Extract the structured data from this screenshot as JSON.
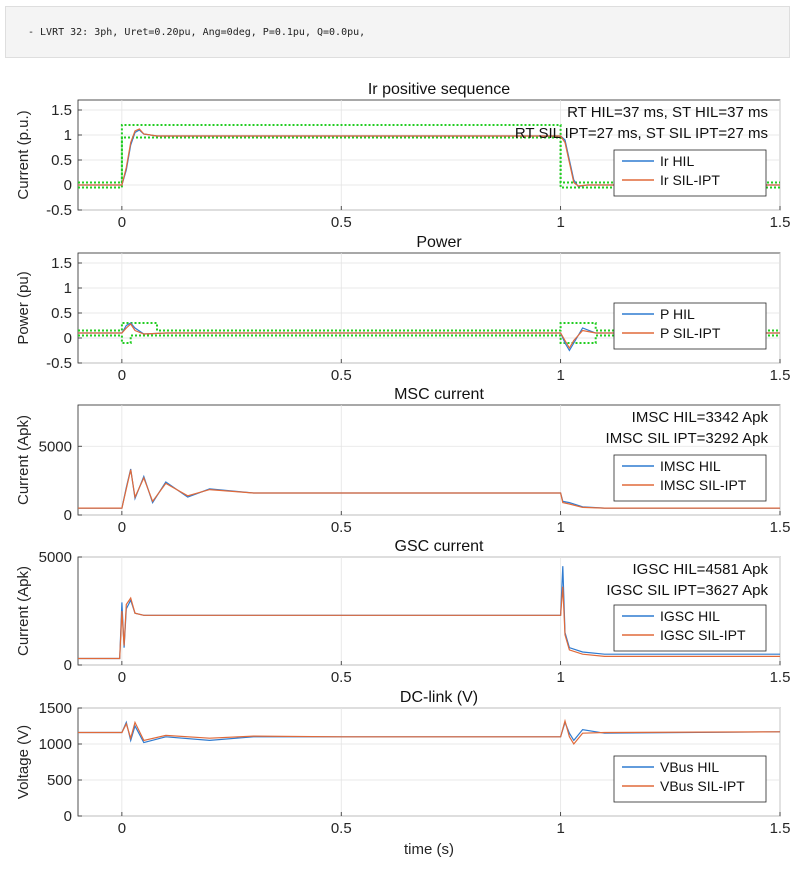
{
  "header": {
    "command_text": "- LVRT 32: 3ph, Uret=0.20pu, Ang=0deg, P=0.1pu, Q=0.0pu,"
  },
  "colors": {
    "hil": "#2f7bd0",
    "sil": "#e06a3a",
    "ref": "#22cc22",
    "grey": "#7a7a7a"
  },
  "chart_data": [
    {
      "type": "line",
      "title": "Ir positive sequence",
      "ylabel": "Current (p.u.)",
      "xlabel": "",
      "xlim": [
        -0.1,
        1.5
      ],
      "ylim": [
        -0.5,
        1.7
      ],
      "xticks": [
        0,
        0.5,
        1,
        1.5
      ],
      "xtick_labels": [
        "0",
        "0.5",
        "1",
        "1.5"
      ],
      "yticks": [
        -0.5,
        0,
        0.5,
        1,
        1.5
      ],
      "ytick_labels": [
        "-0.5",
        "0",
        "0.5",
        "1",
        "1.5"
      ],
      "grid": true,
      "legend_placement": "right",
      "annotations": [
        "RT HIL=37 ms, ST HIL=37 ms",
        "RT SIL IPT=27 ms, ST SIL IPT=27 ms"
      ],
      "series": [
        {
          "name": "Ir HIL",
          "x": [
            -0.1,
            0,
            0.01,
            0.02,
            0.03,
            0.04,
            0.05,
            0.08,
            0.2,
            1.0,
            1.01,
            1.02,
            1.03,
            1.04,
            1.06,
            1.1,
            1.5
          ],
          "y": [
            0,
            0,
            0.3,
            0.8,
            1.05,
            1.1,
            1.02,
            0.98,
            0.98,
            0.98,
            0.9,
            0.5,
            0.1,
            -0.03,
            0.0,
            0.0,
            0.0
          ]
        },
        {
          "name": "Ir SIL-IPT",
          "x": [
            -0.1,
            0,
            0.01,
            0.02,
            0.03,
            0.04,
            0.05,
            0.08,
            0.2,
            1.0,
            1.01,
            1.02,
            1.03,
            1.04,
            1.06,
            1.1,
            1.5
          ],
          "y": [
            0,
            0,
            0.35,
            0.85,
            1.08,
            1.12,
            1.02,
            0.98,
            0.98,
            0.98,
            0.85,
            0.45,
            0.05,
            -0.02,
            0.0,
            0.0,
            0.0
          ]
        }
      ],
      "reference_bands": [
        {
          "x": [
            -0.1,
            0,
            0,
            1.0,
            1.0,
            1.5
          ],
          "y": [
            0.05,
            0.05,
            1.2,
            1.2,
            0.05,
            0.05
          ]
        },
        {
          "x": [
            -0.1,
            0,
            0,
            1.0,
            1.0,
            1.5
          ],
          "y": [
            -0.05,
            -0.05,
            0.95,
            0.95,
            -0.05,
            -0.05
          ]
        }
      ]
    },
    {
      "type": "line",
      "title": "Power",
      "ylabel": "Power (pu)",
      "xlabel": "",
      "xlim": [
        -0.1,
        1.5
      ],
      "ylim": [
        -0.5,
        1.7
      ],
      "xticks": [
        0,
        0.5,
        1,
        1.5
      ],
      "xtick_labels": [
        "0",
        "0.5",
        "1",
        "1.5"
      ],
      "yticks": [
        -0.5,
        0,
        0.5,
        1,
        1.5
      ],
      "ytick_labels": [
        "-0.5",
        "0",
        "0.5",
        "1",
        "1.5"
      ],
      "grid": true,
      "legend_placement": "right",
      "annotations": [],
      "series": [
        {
          "name": "P HIL",
          "x": [
            -0.1,
            0,
            0.01,
            0.02,
            0.03,
            0.05,
            0.1,
            1.0,
            1.01,
            1.02,
            1.03,
            1.05,
            1.08,
            1.5
          ],
          "y": [
            0.1,
            0.1,
            0.25,
            0.3,
            0.2,
            0.08,
            0.1,
            0.1,
            -0.1,
            -0.25,
            -0.1,
            0.2,
            0.1,
            0.1
          ]
        },
        {
          "name": "P SIL-IPT",
          "x": [
            -0.1,
            0,
            0.01,
            0.02,
            0.03,
            0.05,
            0.1,
            1.0,
            1.01,
            1.02,
            1.03,
            1.05,
            1.08,
            1.5
          ],
          "y": [
            0.1,
            0.1,
            0.2,
            0.28,
            0.15,
            0.08,
            0.1,
            0.1,
            -0.05,
            -0.2,
            -0.05,
            0.15,
            0.1,
            0.1
          ]
        }
      ],
      "reference_bands": [
        {
          "x": [
            -0.1,
            0,
            0,
            0.08,
            0.08,
            1.0,
            1.0,
            1.08,
            1.08,
            1.5
          ],
          "y": [
            0.15,
            0.15,
            0.3,
            0.3,
            0.15,
            0.15,
            0.3,
            0.3,
            0.15,
            0.15
          ]
        },
        {
          "x": [
            -0.1,
            0,
            0,
            0.02,
            0.02,
            1.0,
            1.0,
            1.08,
            1.08,
            1.5
          ],
          "y": [
            0.05,
            0.05,
            -0.1,
            -0.1,
            0.05,
            0.05,
            -0.1,
            -0.1,
            0.05,
            0.05
          ]
        }
      ]
    },
    {
      "type": "line",
      "title": "MSC current",
      "ylabel": "Current (Apk)",
      "xlabel": "",
      "xlim": [
        -0.1,
        1.5
      ],
      "ylim": [
        0,
        8000
      ],
      "xticks": [
        0,
        0.5,
        1,
        1.5
      ],
      "xtick_labels": [
        "0",
        "0.5",
        "1",
        "1.5"
      ],
      "yticks": [
        0,
        5000
      ],
      "ytick_labels": [
        "0",
        "5000"
      ],
      "grid": true,
      "legend_placement": "right",
      "annotations": [
        "IMSC HIL=3342 Apk",
        "IMSC SIL IPT=3292 Apk"
      ],
      "series": [
        {
          "name": "IMSC HIL",
          "x": [
            -0.1,
            0,
            0.01,
            0.02,
            0.03,
            0.05,
            0.07,
            0.1,
            0.15,
            0.2,
            0.3,
            0.5,
            1.0,
            1.005,
            1.02,
            1.05,
            1.1,
            1.5
          ],
          "y": [
            500,
            500,
            2000,
            3342,
            1200,
            2800,
            900,
            2400,
            1300,
            1900,
            1600,
            1600,
            1600,
            1000,
            900,
            600,
            500,
            500
          ]
        },
        {
          "name": "IMSC SIL-IPT",
          "x": [
            -0.1,
            0,
            0.01,
            0.02,
            0.03,
            0.05,
            0.07,
            0.1,
            0.15,
            0.2,
            0.3,
            0.5,
            1.0,
            1.005,
            1.02,
            1.05,
            1.1,
            1.5
          ],
          "y": [
            500,
            500,
            1900,
            3292,
            1300,
            2700,
            1000,
            2300,
            1400,
            1850,
            1600,
            1600,
            1600,
            900,
            800,
            550,
            500,
            500
          ]
        }
      ]
    },
    {
      "type": "line",
      "title": "GSC current",
      "ylabel": "Current (Apk)",
      "xlabel": "",
      "xlim": [
        -0.1,
        1.5
      ],
      "ylim": [
        0,
        5000
      ],
      "xticks": [
        0,
        0.5,
        1,
        1.5
      ],
      "xtick_labels": [
        "0",
        "0.5",
        "1",
        "1.5"
      ],
      "yticks": [
        0,
        5000
      ],
      "ytick_labels": [
        "0",
        "5000"
      ],
      "grid": true,
      "legend_placement": "right",
      "annotations": [
        "IGSC HIL=4581 Apk",
        "IGSC SIL IPT=3627 Apk"
      ],
      "series": [
        {
          "name": "IGSC HIL",
          "x": [
            -0.1,
            -0.005,
            0,
            0.005,
            0.01,
            0.02,
            0.03,
            0.05,
            0.5,
            1.0,
            1.005,
            1.01,
            1.02,
            1.05,
            1.1,
            1.5
          ],
          "y": [
            300,
            300,
            2900,
            800,
            2600,
            3000,
            2400,
            2300,
            2300,
            2300,
            4581,
            1500,
            800,
            600,
            500,
            500
          ]
        },
        {
          "name": "IGSC SIL-IPT",
          "x": [
            -0.1,
            -0.005,
            0,
            0.005,
            0.01,
            0.02,
            0.03,
            0.05,
            0.5,
            1.0,
            1.005,
            1.01,
            1.02,
            1.05,
            1.1,
            1.5
          ],
          "y": [
            300,
            300,
            2500,
            900,
            2800,
            3100,
            2400,
            2300,
            2300,
            2300,
            3627,
            1400,
            700,
            500,
            400,
            400
          ]
        }
      ]
    },
    {
      "type": "line",
      "title": "DC-link (V)",
      "ylabel": "Voltage (V)",
      "xlabel": "time (s)",
      "xlim": [
        -0.1,
        1.5
      ],
      "ylim": [
        0,
        1500
      ],
      "xticks": [
        0,
        0.5,
        1,
        1.5
      ],
      "xtick_labels": [
        "0",
        "0.5",
        "1",
        "1.5"
      ],
      "yticks": [
        0,
        500,
        1000,
        1500
      ],
      "ytick_labels": [
        "0",
        "500",
        "1000",
        "1500"
      ],
      "grid": true,
      "legend_placement": "right",
      "annotations": [],
      "series": [
        {
          "name": "VBus HIL",
          "x": [
            -0.1,
            0,
            0.01,
            0.02,
            0.03,
            0.05,
            0.1,
            0.2,
            0.3,
            0.5,
            1.0,
            1.01,
            1.02,
            1.03,
            1.05,
            1.1,
            1.5
          ],
          "y": [
            1160,
            1160,
            1300,
            1050,
            1250,
            1020,
            1100,
            1050,
            1100,
            1100,
            1100,
            1300,
            1150,
            1050,
            1200,
            1150,
            1170
          ]
        },
        {
          "name": "VBus SIL-IPT",
          "x": [
            -0.1,
            0,
            0.01,
            0.02,
            0.03,
            0.05,
            0.1,
            0.2,
            0.3,
            0.5,
            1.0,
            1.01,
            1.02,
            1.03,
            1.05,
            1.1,
            1.5
          ],
          "y": [
            1160,
            1160,
            1280,
            1080,
            1300,
            1050,
            1120,
            1080,
            1110,
            1100,
            1100,
            1320,
            1100,
            1000,
            1150,
            1160,
            1170
          ]
        }
      ]
    }
  ]
}
